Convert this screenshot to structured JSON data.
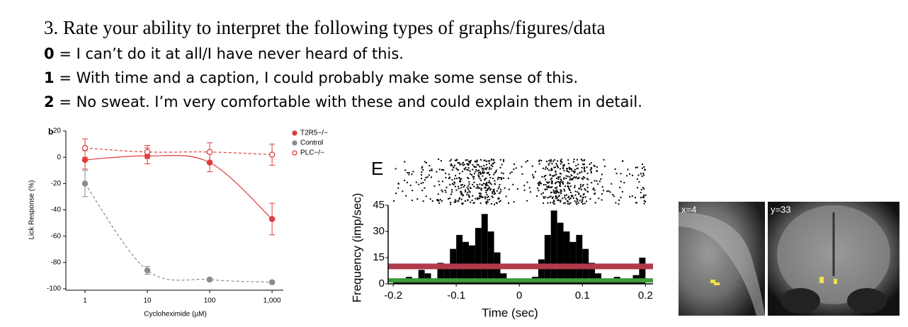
{
  "header": {
    "title": "3. Rate your ability to interpret the following types of graphs/figures/data"
  },
  "scale": [
    {
      "key": "0",
      "text": "= I can’t do it at all/I have never heard of this."
    },
    {
      "key": "1",
      "text": "= With time and a caption, I could probably make some sense of this."
    },
    {
      "key": "2",
      "text": "= No sweat.  I’m very comfortable with these and could explain them in detail."
    }
  ],
  "figures": [
    {
      "type": "line",
      "panel": "b",
      "x": [
        1,
        10,
        100,
        1000
      ],
      "log_x": true,
      "xlim": [
        0.52,
        1515
      ],
      "xticks": [
        1,
        10,
        100,
        {
          "value": 1000,
          "label": "1,000"
        }
      ],
      "ylim": [
        -100,
        20
      ],
      "yticks": [
        -100,
        -80,
        -60,
        -40,
        -20,
        0,
        20
      ],
      "x_label": "Cycloheximide (µM)",
      "y_label": "Lick Response (%)",
      "legend": "top-right",
      "series": [
        {
          "name": "T2R5−/−",
          "color": "#e03c3c",
          "marker": "filled",
          "line": "solid",
          "values": [
            -2,
            1,
            -4,
            -47
          ],
          "errors": [
            7,
            6,
            7,
            12
          ]
        },
        {
          "name": "Control",
          "color": "#8c8c8c",
          "marker": "filled",
          "line": "dashed",
          "values": [
            -20,
            -86,
            -93,
            -95
          ],
          "errors": [
            10,
            3,
            1,
            1
          ]
        },
        {
          "name": "PLC−/−",
          "color": "#e03c3c",
          "marker": "open",
          "line": "dashed",
          "values": [
            7,
            4,
            4,
            2
          ],
          "errors": [
            7,
            5,
            7,
            8
          ]
        }
      ]
    },
    {
      "type": "histogram",
      "panel": "E",
      "color": "#000000",
      "bins": [
        -0.2,
        -0.19,
        -0.18,
        -0.17,
        -0.16,
        -0.15,
        -0.14,
        -0.13,
        -0.12,
        -0.11,
        -0.1,
        -0.09,
        -0.08,
        -0.07,
        -0.06,
        -0.05,
        -0.04,
        -0.03,
        -0.02,
        -0.01,
        0,
        0.01,
        0.02,
        0.03,
        0.04,
        0.05,
        0.06,
        0.07,
        0.08,
        0.09,
        0.1,
        0.11,
        0.12,
        0.13,
        0.14,
        0.15,
        0.16,
        0.17,
        0.18,
        0.19,
        0.2
      ],
      "values": [
        3,
        2,
        4,
        1,
        8,
        6,
        3,
        12,
        10,
        20,
        28,
        24,
        22,
        32,
        40,
        30,
        18,
        6,
        3,
        2,
        2,
        3,
        4,
        14,
        28,
        42,
        35,
        30,
        24,
        28,
        20,
        12,
        6,
        3,
        2,
        4,
        3,
        2,
        5,
        15
      ],
      "xlim": [
        -0.208,
        0.212
      ],
      "xticks": [
        -0.2,
        -0.1,
        0,
        0.1,
        0.2
      ],
      "ylim": [
        0,
        45
      ],
      "yticks": [
        0,
        15,
        30,
        45
      ],
      "x_label": "Time (sec)",
      "y_label": "Frequency (imp/sec)",
      "reference_lines": [
        {
          "value": 10,
          "color": "#b03a4a"
        },
        {
          "value": 2,
          "color": "#3f9a3a"
        }
      ]
    },
    {
      "type": "image",
      "panels": [
        "x=4",
        "y=33"
      ]
    }
  ]
}
